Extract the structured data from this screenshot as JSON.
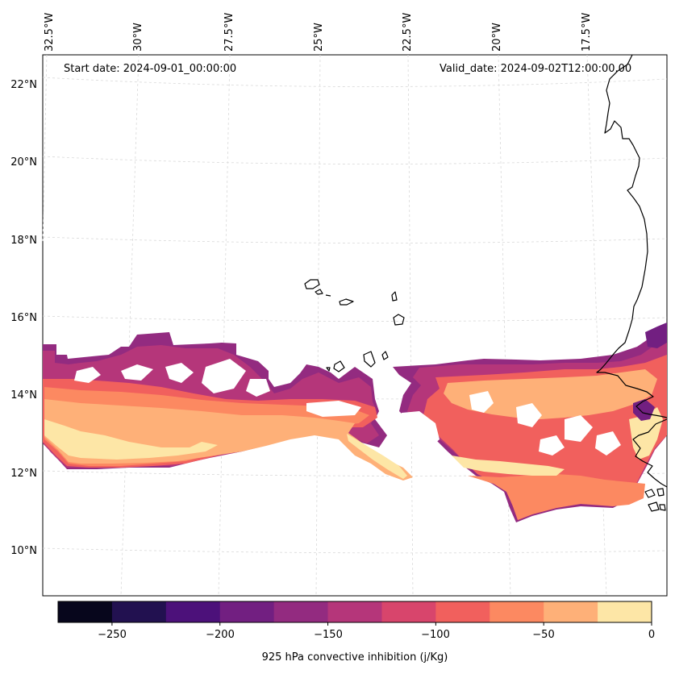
{
  "chart_data": {
    "type": "map-contourf",
    "variable": "925 hPa convective inhibition",
    "units": "j/Kg",
    "colorbar_label": "925 hPa convective inhibition (j/Kg)",
    "start_date_text": "Start date: 2024-09-01_00:00:00",
    "valid_date_text": "Valid_date: 2024-09-02T12:00:00.00",
    "lon_labels": [
      "32.5°W",
      "30°W",
      "27.5°W",
      "25°W",
      "22.5°W",
      "20°W",
      "17.5°W"
    ],
    "lat_labels": [
      "22°N",
      "20°N",
      "18°N",
      "16°N",
      "14°N",
      "12°N",
      "10°N"
    ],
    "colorbar": {
      "levels": [
        -275,
        -250,
        -225,
        -200,
        -175,
        -150,
        -125,
        -100,
        -75,
        -50,
        -25,
        0
      ],
      "tick_values": [
        -250,
        -200,
        -150,
        -100,
        -50,
        0
      ],
      "tick_labels": [
        "−250",
        "−200",
        "−150",
        "−100",
        "−50",
        "0"
      ],
      "colors": [
        "#07061c",
        "#221150",
        "#4c117a",
        "#721f81",
        "#932b80",
        "#b5367a",
        "#d8456c",
        "#f1605d",
        "#fc8961",
        "#feb078",
        "#fde6a6"
      ]
    },
    "map_colors": {
      "lightest": "#fde6a6",
      "light": "#feb078",
      "mid": "#fc8961",
      "red": "#f1605d",
      "pink": "#d8456c",
      "magenta": "#b5367a",
      "purple": "#932b80",
      "dark_purple": "#721f81"
    }
  }
}
